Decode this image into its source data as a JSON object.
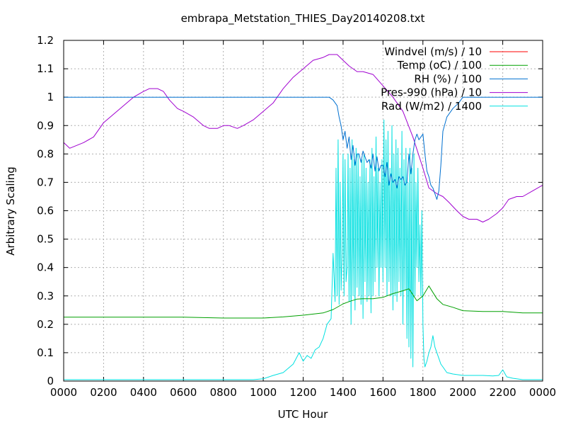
{
  "chart_data": {
    "type": "line",
    "title": "embrapa_Metstation_THIES_Day20140208.txt",
    "xlabel": "UTC Hour",
    "ylabel": "Arbitrary Scaling",
    "xlim": [
      0,
      24
    ],
    "ylim": [
      0,
      1.2
    ],
    "x_ticks": [
      0,
      2,
      4,
      6,
      8,
      10,
      12,
      14,
      16,
      18,
      20,
      22,
      24
    ],
    "x_tick_labels": [
      "0000",
      "0200",
      "0400",
      "0600",
      "0800",
      "1000",
      "1200",
      "1400",
      "1600",
      "1800",
      "2000",
      "2200",
      "0000"
    ],
    "y_ticks": [
      0,
      0.1,
      0.2,
      0.3,
      0.4,
      0.5,
      0.6,
      0.7,
      0.8,
      0.9,
      1.0,
      1.1,
      1.2
    ],
    "y_tick_labels": [
      "0",
      "0.1",
      "0.2",
      "0.3",
      "0.4",
      "0.5",
      "0.6",
      "0.7",
      "0.8",
      "0.9",
      "1",
      "1.1",
      "1.2"
    ],
    "grid": true,
    "legend_position": "top-right",
    "series": [
      {
        "name": "Windvel (m/s) / 10",
        "color": "#ff0000",
        "x": [],
        "y": []
      },
      {
        "name": "Temp (oC) / 100",
        "color": "#00a000",
        "x": [
          0,
          2,
          4,
          6,
          8,
          10,
          11,
          12,
          13,
          13.5,
          14,
          14.3,
          14.7,
          15,
          15.5,
          16,
          16.5,
          17,
          17.3,
          17.7,
          18,
          18.3,
          18.7,
          19,
          19.5,
          20,
          21,
          22,
          23,
          24
        ],
        "y": [
          0.225,
          0.225,
          0.225,
          0.225,
          0.222,
          0.222,
          0.226,
          0.232,
          0.24,
          0.252,
          0.272,
          0.28,
          0.289,
          0.29,
          0.29,
          0.295,
          0.308,
          0.318,
          0.325,
          0.283,
          0.3,
          0.335,
          0.29,
          0.27,
          0.26,
          0.248,
          0.245,
          0.245,
          0.24,
          0.24
        ]
      },
      {
        "name": "RH (%) / 100",
        "color": "#0070d0",
        "x": [
          0,
          13.3,
          13.5,
          13.7,
          13.8,
          13.9,
          14.0,
          14.1,
          14.2,
          14.3,
          14.4,
          14.5,
          14.6,
          14.7,
          14.8,
          14.9,
          15.0,
          15.1,
          15.2,
          15.3,
          15.4,
          15.5,
          15.6,
          15.7,
          15.8,
          15.9,
          16.0,
          16.1,
          16.2,
          16.3,
          16.4,
          16.5,
          16.6,
          16.7,
          16.8,
          16.9,
          17.0,
          17.1,
          17.2,
          17.3,
          17.4,
          17.5,
          17.6,
          17.7,
          17.8,
          17.9,
          18.0,
          18.1,
          18.2,
          18.3,
          18.4,
          18.5,
          18.6,
          18.7,
          18.8,
          18.9,
          19.0,
          19.2,
          19.5,
          19.8,
          20.0,
          24
        ],
        "y": [
          1.0,
          1.0,
          0.99,
          0.97,
          0.93,
          0.9,
          0.85,
          0.88,
          0.82,
          0.86,
          0.78,
          0.83,
          0.76,
          0.8,
          0.8,
          0.77,
          0.81,
          0.79,
          0.77,
          0.78,
          0.75,
          0.8,
          0.74,
          0.79,
          0.74,
          0.76,
          0.76,
          0.72,
          0.77,
          0.69,
          0.73,
          0.7,
          0.71,
          0.68,
          0.72,
          0.71,
          0.72,
          0.69,
          0.7,
          0.8,
          0.73,
          0.8,
          0.85,
          0.87,
          0.85,
          0.86,
          0.87,
          0.8,
          0.74,
          0.72,
          0.69,
          0.68,
          0.66,
          0.64,
          0.67,
          0.76,
          0.88,
          0.93,
          0.96,
          0.98,
          1.0,
          1.0
        ]
      },
      {
        "name": "Pres-990 (hPa) / 10",
        "color": "#a000d0",
        "x": [
          0,
          0.3,
          1.0,
          1.5,
          2.0,
          2.5,
          3.0,
          3.5,
          4.0,
          4.3,
          4.7,
          5.0,
          5.3,
          5.7,
          6.0,
          6.5,
          7.0,
          7.3,
          7.7,
          8.0,
          8.3,
          8.7,
          9.0,
          9.5,
          10.0,
          10.5,
          11.0,
          11.5,
          12.0,
          12.5,
          13.0,
          13.3,
          13.7,
          14.0,
          14.3,
          14.7,
          15.0,
          15.5,
          16.0,
          16.5,
          17.0,
          17.5,
          18.0,
          18.3,
          18.7,
          19.0,
          19.3,
          19.7,
          20.0,
          20.3,
          20.7,
          21.0,
          21.3,
          21.7,
          22.0,
          22.3,
          22.7,
          23.0,
          23.5,
          24.0
        ],
        "y": [
          0.84,
          0.82,
          0.84,
          0.86,
          0.91,
          0.94,
          0.97,
          1.0,
          1.02,
          1.03,
          1.03,
          1.02,
          0.99,
          0.96,
          0.95,
          0.93,
          0.9,
          0.89,
          0.89,
          0.9,
          0.9,
          0.89,
          0.9,
          0.92,
          0.95,
          0.98,
          1.03,
          1.07,
          1.1,
          1.13,
          1.14,
          1.15,
          1.15,
          1.13,
          1.11,
          1.09,
          1.09,
          1.08,
          1.04,
          1.0,
          0.95,
          0.86,
          0.75,
          0.68,
          0.66,
          0.65,
          0.63,
          0.6,
          0.58,
          0.57,
          0.57,
          0.56,
          0.57,
          0.59,
          0.61,
          0.64,
          0.65,
          0.65,
          0.67,
          0.69
        ]
      },
      {
        "name": "Rad (W/m2) / 1400",
        "color": "#00e0e0",
        "x": [
          0,
          9.5,
          10.0,
          10.5,
          11.0,
          11.5,
          11.8,
          12.0,
          12.2,
          12.4,
          12.6,
          12.8,
          13.0,
          13.2,
          13.4,
          13.5,
          13.6,
          13.65,
          13.7,
          13.75,
          13.8,
          13.85,
          13.9,
          13.95,
          14.0,
          14.05,
          14.1,
          14.15,
          14.2,
          14.25,
          14.3,
          14.35,
          14.4,
          14.45,
          14.5,
          14.55,
          14.6,
          14.65,
          14.7,
          14.75,
          14.8,
          14.85,
          14.9,
          14.95,
          15.0,
          15.05,
          15.1,
          15.15,
          15.2,
          15.25,
          15.3,
          15.35,
          15.4,
          15.45,
          15.5,
          15.55,
          15.6,
          15.65,
          15.7,
          15.75,
          15.8,
          15.85,
          15.9,
          15.95,
          16.0,
          16.05,
          16.1,
          16.15,
          16.2,
          16.25,
          16.3,
          16.35,
          16.4,
          16.45,
          16.5,
          16.55,
          16.6,
          16.65,
          16.7,
          16.75,
          16.8,
          16.85,
          16.9,
          16.95,
          17.0,
          17.05,
          17.1,
          17.15,
          17.2,
          17.25,
          17.3,
          17.35,
          17.4,
          17.45,
          17.5,
          17.55,
          17.6,
          17.65,
          17.7,
          17.75,
          17.8,
          17.85,
          17.9,
          17.95,
          18.0,
          18.05,
          18.1,
          18.15,
          18.2,
          18.3,
          18.4,
          18.5,
          18.6,
          18.7,
          18.8,
          18.9,
          19.0,
          19.2,
          19.5,
          20.0,
          20.5,
          21.0,
          21.5,
          21.8,
          22.0,
          22.2,
          22.5,
          23.0,
          23.5,
          24.0
        ],
        "y": [
          0.005,
          0.005,
          0.008,
          0.02,
          0.03,
          0.06,
          0.1,
          0.07,
          0.09,
          0.08,
          0.11,
          0.12,
          0.15,
          0.2,
          0.22,
          0.45,
          0.28,
          0.75,
          0.3,
          0.85,
          0.27,
          0.7,
          0.32,
          0.45,
          0.8,
          0.3,
          0.78,
          0.35,
          0.4,
          0.8,
          0.28,
          0.75,
          0.2,
          0.85,
          0.3,
          0.78,
          0.25,
          0.82,
          0.33,
          0.8,
          0.3,
          0.72,
          0.27,
          0.78,
          0.22,
          0.8,
          0.35,
          0.75,
          0.28,
          0.7,
          0.3,
          0.78,
          0.24,
          0.82,
          0.3,
          0.72,
          0.35,
          0.86,
          0.4,
          0.75,
          0.3,
          0.7,
          0.4,
          0.78,
          0.35,
          0.92,
          0.4,
          0.85,
          0.3,
          0.88,
          0.35,
          0.75,
          0.3,
          0.9,
          0.25,
          0.8,
          0.3,
          0.85,
          0.28,
          0.82,
          0.35,
          0.75,
          0.3,
          0.88,
          0.2,
          0.78,
          0.32,
          0.82,
          0.15,
          0.7,
          0.12,
          0.82,
          0.08,
          0.75,
          0.05,
          0.8,
          0.3,
          0.7,
          0.4,
          0.75,
          0.35,
          0.55,
          0.3,
          0.6,
          0.2,
          0.08,
          0.05,
          0.06,
          0.07,
          0.1,
          0.12,
          0.16,
          0.12,
          0.1,
          0.08,
          0.06,
          0.05,
          0.03,
          0.025,
          0.02,
          0.02,
          0.02,
          0.018,
          0.02,
          0.04,
          0.015,
          0.01,
          0.005,
          0.005,
          0.005
        ]
      }
    ]
  }
}
